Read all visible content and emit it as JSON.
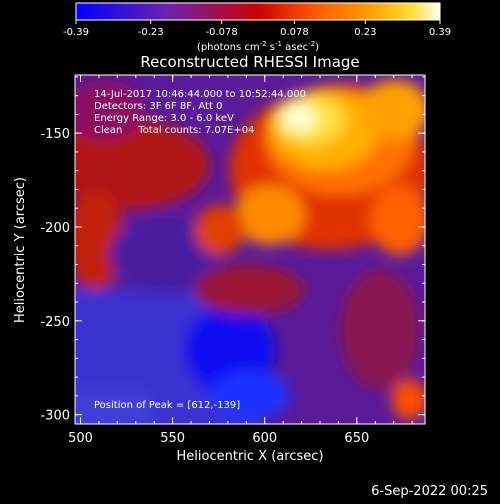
{
  "colorbar": {
    "ticks": [
      "-0.39",
      "-0.23",
      "-0.078",
      "0.078",
      "0.23",
      "0.39"
    ],
    "unit_prefix": "(photons cm",
    "unit_sup1": "-2",
    "unit_mid1": " s",
    "unit_sup2": "-1",
    "unit_mid2": " asec",
    "unit_sup3": "-2",
    "unit_suffix": ")",
    "colors": [
      "#0000ff",
      "#6a22b0",
      "#cc0000",
      "#ff5500",
      "#ff9900",
      "#ffdd33",
      "#ffffee"
    ]
  },
  "chart_data": {
    "type": "heatmap",
    "title": "Reconstructed RHESSI Image",
    "xlabel": "Heliocentric X (arcsec)",
    "ylabel": "Heliocentric Y (arcsec)",
    "xlim": [
      497,
      687
    ],
    "ylim": [
      -305,
      -119
    ],
    "xticks": [
      "500",
      "550",
      "600",
      "650"
    ],
    "yticks": [
      "-150",
      "-200",
      "-250",
      "-300"
    ],
    "value_range": [
      -0.39,
      0.39
    ],
    "annotations": [
      "14-Jul-2017 10:46:44.000 to 10:52:44.000",
      "Detectors: 3F 6F 8F, Att 0",
      "Energy Range: 3.0 - 6.0 keV",
      "Clean     Total counts: 7.07E+04"
    ],
    "peak_label": "Position of Peak = [612,-139]",
    "peak": [
      612,
      -139
    ]
  },
  "footer": {
    "date": "6-Sep-2022 00:25"
  }
}
